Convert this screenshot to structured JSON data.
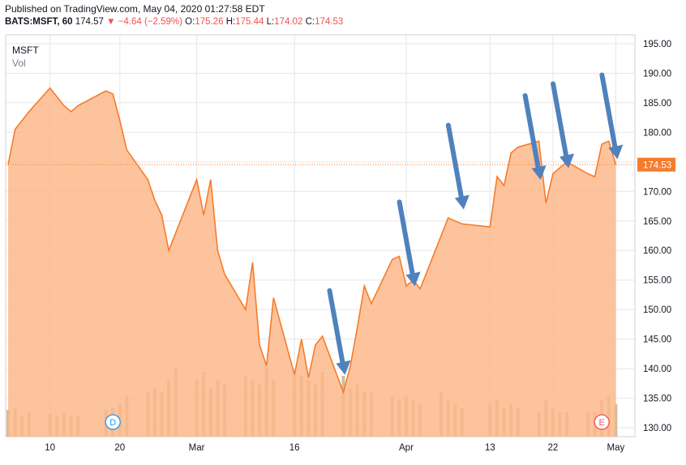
{
  "header": {
    "published": "Published on TradingView.com, May 04, 2020 01:27:58 EDT",
    "symbol": "BATS:MSFT, 60",
    "last": "174.57",
    "change": "▼ −4.64 (−2.59%)",
    "o_label": "O:",
    "o": "175.26",
    "h_label": "H:",
    "h": "175.44",
    "l_label": "L:",
    "l": "174.02",
    "c_label": "C:",
    "c": "174.53"
  },
  "legend": {
    "symbol": "MSFT",
    "vol": "Vol"
  },
  "colors": {
    "line": "#f57c2c",
    "area": "#fdb98b",
    "volume": "#c9b08e",
    "text": "#131722",
    "arrow": "#4f81bd",
    "grid": "#e6e6e6"
  },
  "markers": [
    {
      "label": "D",
      "date": "2020-02-19",
      "color": "#2196f3"
    },
    {
      "label": "E",
      "date": "2020-04-29",
      "color": "#ef5350"
    }
  ],
  "arrow_icon": "down-arrow-icon",
  "chart_data": {
    "type": "area",
    "title": "MSFT",
    "x": [
      "2020-02-04",
      "2020-02-05",
      "2020-02-06",
      "2020-02-07",
      "2020-02-10",
      "2020-02-11",
      "2020-02-12",
      "2020-02-13",
      "2020-02-14",
      "2020-02-18",
      "2020-02-19",
      "2020-02-20",
      "2020-02-21",
      "2020-02-24",
      "2020-02-25",
      "2020-02-26",
      "2020-02-27",
      "2020-02-28",
      "2020-03-02",
      "2020-03-03",
      "2020-03-04",
      "2020-03-05",
      "2020-03-06",
      "2020-03-09",
      "2020-03-10",
      "2020-03-11",
      "2020-03-12",
      "2020-03-13",
      "2020-03-16",
      "2020-03-17",
      "2020-03-18",
      "2020-03-19",
      "2020-03-20",
      "2020-03-23",
      "2020-03-24",
      "2020-03-25",
      "2020-03-26",
      "2020-03-27",
      "2020-03-30",
      "2020-03-31",
      "2020-04-01",
      "2020-04-02",
      "2020-04-03",
      "2020-04-06",
      "2020-04-07",
      "2020-04-08",
      "2020-04-09",
      "2020-04-13",
      "2020-04-14",
      "2020-04-15",
      "2020-04-16",
      "2020-04-17",
      "2020-04-20",
      "2020-04-21",
      "2020-04-22",
      "2020-04-23",
      "2020-04-24",
      "2020-04-27",
      "2020-04-28",
      "2020-04-29",
      "2020-04-30",
      "2020-05-01"
    ],
    "close": [
      174.5,
      180.5,
      182.0,
      183.5,
      187.5,
      186.0,
      184.5,
      183.5,
      184.5,
      187.0,
      186.5,
      182.0,
      177.0,
      172.0,
      168.5,
      166.0,
      160.0,
      163.0,
      172.0,
      166.0,
      172.0,
      160.0,
      156.0,
      150.0,
      158.0,
      144.0,
      140.5,
      152.0,
      139.0,
      145.0,
      138.5,
      144.0,
      145.5,
      136.0,
      140.5,
      147.0,
      154.0,
      151.0,
      158.5,
      159.0,
      154.0,
      155.0,
      153.5,
      162.5,
      165.5,
      165.0,
      164.5,
      164.0,
      172.5,
      171.0,
      176.5,
      177.5,
      178.5,
      168.0,
      173.0,
      174.0,
      175.0,
      173.0,
      172.5,
      178.0,
      178.5,
      174.5
    ],
    "volume": [
      33,
      35,
      25,
      30,
      28,
      25,
      30,
      26,
      25,
      33,
      35,
      40,
      50,
      55,
      60,
      55,
      70,
      85,
      70,
      80,
      60,
      70,
      65,
      75,
      70,
      65,
      85,
      70,
      80,
      75,
      70,
      65,
      80,
      75,
      60,
      65,
      55,
      55,
      50,
      45,
      50,
      45,
      40,
      55,
      45,
      40,
      35,
      40,
      45,
      35,
      40,
      35,
      30,
      45,
      35,
      30,
      30,
      30,
      30,
      45,
      50,
      40
    ],
    "y_ticks": [
      130,
      135,
      140,
      145,
      150,
      155,
      160,
      165,
      170,
      175,
      180,
      185,
      190,
      195
    ],
    "y_tick_labels": [
      "130.00",
      "135.00",
      "140.00",
      "145.00",
      "150.00",
      "155.00",
      "160.00",
      "165.00",
      "170.00",
      "175.00",
      "180.00",
      "185.00",
      "190.00",
      "195.00"
    ],
    "x_ticks": [
      {
        "date": "2020-02-10",
        "label": "10"
      },
      {
        "date": "2020-02-20",
        "label": "20"
      },
      {
        "date": "2020-03-02",
        "label": "Mar"
      },
      {
        "date": "2020-03-16",
        "label": "16"
      },
      {
        "date": "2020-04-01",
        "label": "Apr"
      },
      {
        "date": "2020-04-13",
        "label": "13"
      },
      {
        "date": "2020-04-22",
        "label": "22"
      },
      {
        "date": "2020-05-01",
        "label": "May"
      }
    ],
    "ylim": [
      128.5,
      196.5
    ],
    "last_price": {
      "value": 174.53,
      "label": "174.53"
    },
    "arrows": [
      {
        "date": "2020-03-23",
        "value": 139.5
      },
      {
        "date": "2020-04-02",
        "value": 154.5
      },
      {
        "date": "2020-04-09",
        "value": 167.5
      },
      {
        "date": "2020-04-20",
        "value": 172.5
      },
      {
        "date": "2020-04-24",
        "value": 174.5
      },
      {
        "date": "2020-05-01",
        "value": 176.0
      }
    ]
  }
}
